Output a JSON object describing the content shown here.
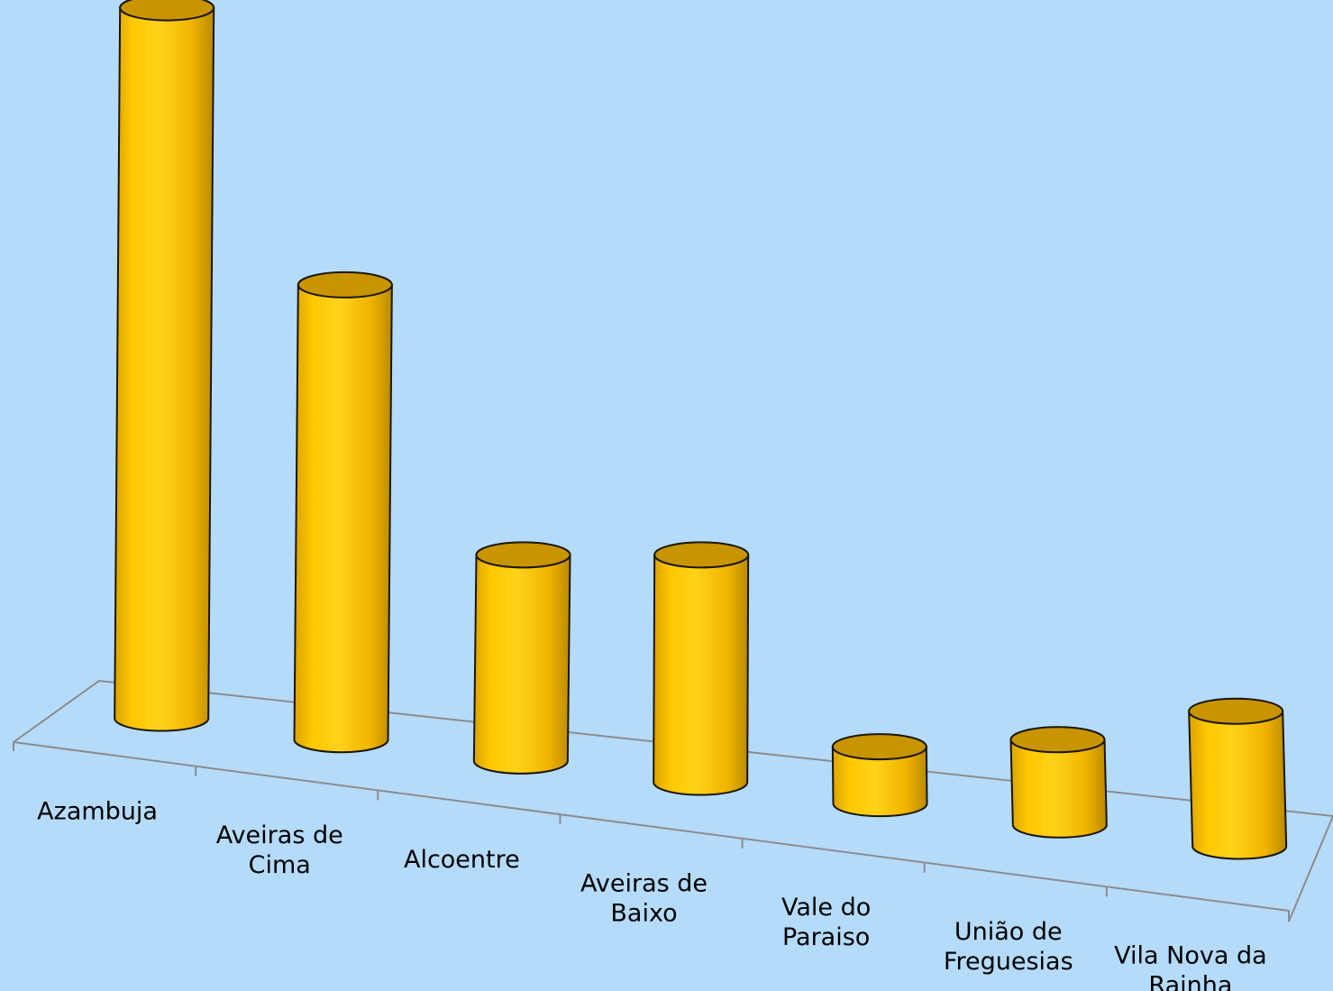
{
  "chart_data": {
    "type": "bar",
    "style": "3d-cylinder",
    "categories": [
      [
        "Azambuja"
      ],
      [
        "Aveiras de",
        "Cima"
      ],
      [
        "Alcoentre"
      ],
      [
        "Aveiras de",
        "Baixo"
      ],
      [
        "Vale do",
        "Paraiso"
      ],
      [
        "União de",
        "Freguesias"
      ],
      [
        "Vila Nova da",
        "Rainha"
      ]
    ],
    "values": [
      100,
      64,
      29,
      32,
      8,
      12,
      19
    ],
    "ylim": [
      0,
      100
    ],
    "grid": false,
    "legend": "none",
    "colors": {
      "background": "#b5dbfa",
      "bar_light": "#ffd000",
      "bar_mid": "#f2b800",
      "bar_dark": "#b98a00",
      "bar_top": "#c89500",
      "axis": "#8c8c8c"
    }
  }
}
